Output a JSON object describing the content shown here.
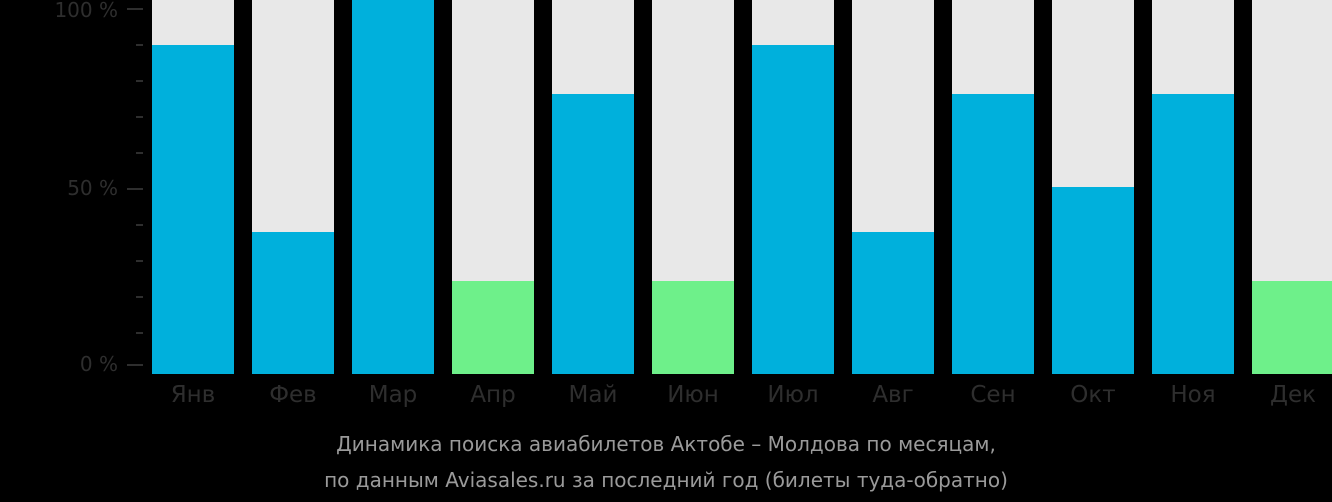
{
  "colors": {
    "background": "#000000",
    "track": "#e8e8e8",
    "normal": "#00b0dc",
    "low": "#6ef08a",
    "axis_text": "#2e2e2e",
    "caption_text": "#9a9a9a"
  },
  "axis": {
    "labels": [
      "100 %",
      "50 %",
      "0 %"
    ]
  },
  "caption": {
    "line1": "Динамика поиска авиабилетов Актобе – Молдова по месяцам,",
    "line2": "по данным Aviasales.ru за последний год (билеты туда-обратно)"
  },
  "chart_data": {
    "type": "bar",
    "title": "Динамика поиска авиабилетов Актобе – Молдова по месяцам, по данным Aviasales.ru за последний год (билеты туда-обратно)",
    "xlabel": "",
    "ylabel": "",
    "ylim": [
      0,
      100
    ],
    "yticks": [
      "0 %",
      "50 %",
      "100 %"
    ],
    "categories": [
      "Янв",
      "Фев",
      "Мар",
      "Апр",
      "Май",
      "Июн",
      "Июл",
      "Авг",
      "Сен",
      "Окт",
      "Ноя",
      "Дек"
    ],
    "values": [
      88,
      38,
      100,
      25,
      75,
      25,
      88,
      38,
      75,
      50,
      75,
      25
    ],
    "highlight_low": [
      false,
      false,
      false,
      true,
      false,
      true,
      false,
      false,
      false,
      false,
      false,
      true
    ],
    "grid": false,
    "legend": null
  }
}
